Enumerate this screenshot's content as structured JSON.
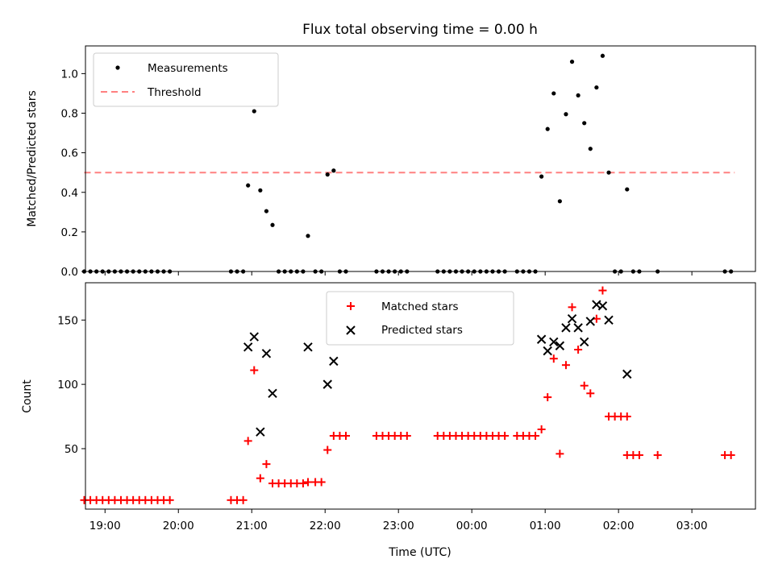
{
  "chart_data": [
    {
      "type": "scatter",
      "title": "Flux total observing time = 0.00 h",
      "xlabel": "",
      "ylabel": "Matched/Predicted stars",
      "xlim": [
        "18:44",
        "03:52"
      ],
      "ylim": [
        0,
        1.14
      ],
      "yticks": [
        "0.0",
        "0.2",
        "0.4",
        "0.6",
        "0.8",
        "1.0"
      ],
      "xticks": [],
      "legend": {
        "placement": "top-left",
        "entries": [
          "Measurements",
          "Threshold"
        ]
      },
      "colors": {
        "measurements": "#000000",
        "threshold": "#ff8080"
      },
      "threshold": {
        "y": 0.5,
        "x_range": [
          "18:43",
          "03:35"
        ]
      },
      "series": [
        {
          "name": "Measurements",
          "points": [
            [
              "18:43",
              0
            ],
            [
              "18:48",
              0
            ],
            [
              "18:53",
              0
            ],
            [
              "18:58",
              0
            ],
            [
              "19:03",
              0
            ],
            [
              "19:08",
              0
            ],
            [
              "19:13",
              0
            ],
            [
              "19:18",
              0
            ],
            [
              "19:23",
              0
            ],
            [
              "19:28",
              0
            ],
            [
              "19:33",
              0
            ],
            [
              "19:38",
              0
            ],
            [
              "19:43",
              0
            ],
            [
              "19:48",
              0
            ],
            [
              "19:53",
              0
            ],
            [
              "20:43",
              0
            ],
            [
              "20:48",
              0
            ],
            [
              "20:53",
              0
            ],
            [
              "20:57",
              0.435
            ],
            [
              "21:02",
              0.81
            ],
            [
              "21:07",
              0.41
            ],
            [
              "21:12",
              0.305
            ],
            [
              "21:17",
              0.235
            ],
            [
              "21:22",
              0
            ],
            [
              "21:27",
              0
            ],
            [
              "21:32",
              0
            ],
            [
              "21:37",
              0
            ],
            [
              "21:42",
              0
            ],
            [
              "21:46",
              0.18
            ],
            [
              "21:52",
              0
            ],
            [
              "21:57",
              0
            ],
            [
              "22:02",
              0.49
            ],
            [
              "22:07",
              0.51
            ],
            [
              "22:12",
              0
            ],
            [
              "22:17",
              0
            ],
            [
              "22:42",
              0
            ],
            [
              "22:47",
              0
            ],
            [
              "22:52",
              0
            ],
            [
              "22:57",
              0
            ],
            [
              "23:02",
              0
            ],
            [
              "23:07",
              0
            ],
            [
              "23:32",
              0
            ],
            [
              "23:37",
              0
            ],
            [
              "23:42",
              0
            ],
            [
              "23:47",
              0
            ],
            [
              "23:52",
              0
            ],
            [
              "23:57",
              0
            ],
            [
              "00:02",
              0
            ],
            [
              "00:07",
              0
            ],
            [
              "00:12",
              0
            ],
            [
              "00:17",
              0
            ],
            [
              "00:22",
              0
            ],
            [
              "00:27",
              0
            ],
            [
              "00:37",
              0
            ],
            [
              "00:42",
              0
            ],
            [
              "00:47",
              0
            ],
            [
              "00:52",
              0
            ],
            [
              "00:57",
              0.48
            ],
            [
              "01:02",
              0.72
            ],
            [
              "01:07",
              0.9
            ],
            [
              "01:12",
              0.355
            ],
            [
              "01:17",
              0.795
            ],
            [
              "01:22",
              1.06
            ],
            [
              "01:27",
              0.89
            ],
            [
              "01:32",
              0.75
            ],
            [
              "01:37",
              0.62
            ],
            [
              "01:42",
              0.93
            ],
            [
              "01:47",
              1.09
            ],
            [
              "01:52",
              0.5
            ],
            [
              "01:57",
              0
            ],
            [
              "02:02",
              0
            ],
            [
              "02:07",
              0.415
            ],
            [
              "02:12",
              0
            ],
            [
              "02:17",
              0
            ],
            [
              "02:32",
              0
            ],
            [
              "03:27",
              0
            ],
            [
              "03:32",
              0
            ]
          ]
        }
      ]
    },
    {
      "type": "scatter",
      "title": "",
      "xlabel": "Time (UTC)",
      "ylabel": "Count",
      "xlim": [
        "18:44",
        "03:52"
      ],
      "ylim": [
        3,
        179
      ],
      "yticks": [
        "50",
        "100",
        "150"
      ],
      "xticks": [
        "19:00",
        "20:00",
        "21:00",
        "22:00",
        "23:00",
        "00:00",
        "01:00",
        "02:00",
        "03:00"
      ],
      "legend": {
        "placement": "top-center",
        "entries": [
          "Matched stars",
          "Predicted stars"
        ]
      },
      "colors": {
        "matched": "#ff0000",
        "predicted": "#000000"
      },
      "series": [
        {
          "name": "Matched stars",
          "marker": "plus",
          "points": [
            [
              "18:43",
              10
            ],
            [
              "18:48",
              10
            ],
            [
              "18:53",
              10
            ],
            [
              "18:58",
              10
            ],
            [
              "19:03",
              10
            ],
            [
              "19:08",
              10
            ],
            [
              "19:13",
              10
            ],
            [
              "19:18",
              10
            ],
            [
              "19:23",
              10
            ],
            [
              "19:28",
              10
            ],
            [
              "19:33",
              10
            ],
            [
              "19:38",
              10
            ],
            [
              "19:43",
              10
            ],
            [
              "19:48",
              10
            ],
            [
              "19:53",
              10
            ],
            [
              "20:43",
              10
            ],
            [
              "20:48",
              10
            ],
            [
              "20:53",
              10
            ],
            [
              "20:57",
              56
            ],
            [
              "21:02",
              111
            ],
            [
              "21:07",
              27
            ],
            [
              "21:12",
              38
            ],
            [
              "21:17",
              23
            ],
            [
              "21:22",
              23
            ],
            [
              "21:27",
              23
            ],
            [
              "21:32",
              23
            ],
            [
              "21:37",
              23
            ],
            [
              "21:42",
              23
            ],
            [
              "21:46",
              24
            ],
            [
              "21:52",
              24
            ],
            [
              "21:57",
              24
            ],
            [
              "22:02",
              49
            ],
            [
              "22:07",
              60
            ],
            [
              "22:12",
              60
            ],
            [
              "22:17",
              60
            ],
            [
              "22:42",
              60
            ],
            [
              "22:47",
              60
            ],
            [
              "22:52",
              60
            ],
            [
              "22:57",
              60
            ],
            [
              "23:02",
              60
            ],
            [
              "23:07",
              60
            ],
            [
              "23:32",
              60
            ],
            [
              "23:37",
              60
            ],
            [
              "23:42",
              60
            ],
            [
              "23:47",
              60
            ],
            [
              "23:52",
              60
            ],
            [
              "23:57",
              60
            ],
            [
              "00:02",
              60
            ],
            [
              "00:07",
              60
            ],
            [
              "00:12",
              60
            ],
            [
              "00:17",
              60
            ],
            [
              "00:22",
              60
            ],
            [
              "00:27",
              60
            ],
            [
              "00:37",
              60
            ],
            [
              "00:42",
              60
            ],
            [
              "00:47",
              60
            ],
            [
              "00:52",
              60
            ],
            [
              "00:57",
              65
            ],
            [
              "01:02",
              90
            ],
            [
              "01:07",
              120
            ],
            [
              "01:12",
              46
            ],
            [
              "01:17",
              115
            ],
            [
              "01:22",
              160
            ],
            [
              "01:27",
              127
            ],
            [
              "01:32",
              99
            ],
            [
              "01:37",
              93
            ],
            [
              "01:42",
              151
            ],
            [
              "01:47",
              173
            ],
            [
              "01:52",
              75
            ],
            [
              "01:57",
              75
            ],
            [
              "02:02",
              75
            ],
            [
              "02:07",
              75
            ],
            [
              "02:07",
              45
            ],
            [
              "02:12",
              45
            ],
            [
              "02:17",
              45
            ],
            [
              "02:32",
              45
            ],
            [
              "03:27",
              45
            ],
            [
              "03:32",
              45
            ]
          ]
        },
        {
          "name": "Predicted stars",
          "marker": "x",
          "points": [
            [
              "20:57",
              129
            ],
            [
              "21:02",
              137
            ],
            [
              "21:07",
              63
            ],
            [
              "21:12",
              124
            ],
            [
              "21:17",
              93
            ],
            [
              "21:46",
              129
            ],
            [
              "22:02",
              100
            ],
            [
              "22:07",
              118
            ],
            [
              "00:57",
              135
            ],
            [
              "01:02",
              126
            ],
            [
              "01:07",
              133
            ],
            [
              "01:12",
              130
            ],
            [
              "01:17",
              144
            ],
            [
              "01:22",
              151
            ],
            [
              "01:27",
              144
            ],
            [
              "01:32",
              133
            ],
            [
              "01:37",
              149
            ],
            [
              "01:42",
              162
            ],
            [
              "01:47",
              161
            ],
            [
              "01:52",
              150
            ],
            [
              "02:07",
              108
            ]
          ]
        }
      ]
    }
  ]
}
